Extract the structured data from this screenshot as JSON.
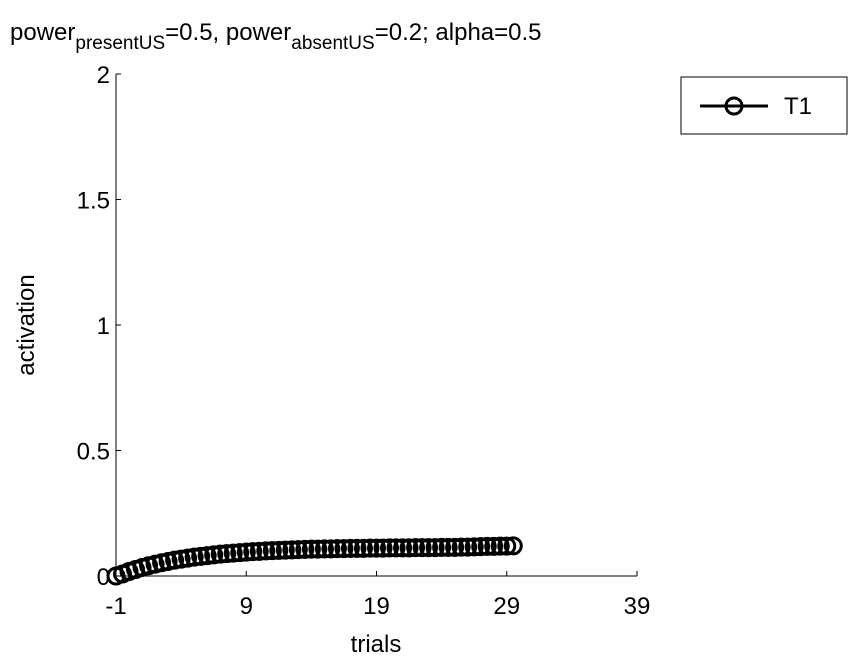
{
  "chart_data": {
    "type": "scatter",
    "title": {
      "p1": "power",
      "p1_sub": "presentUS",
      "p2": "=0.5, power",
      "p2_sub": "absentUS",
      "p3": "=0.2; alpha=0.5"
    },
    "xlabel": "trials",
    "ylabel": "activation",
    "xlim": [
      -1,
      39
    ],
    "ylim": [
      0,
      2
    ],
    "xticks": [
      -1,
      9,
      19,
      29,
      39
    ],
    "yticks": [
      0,
      0.5,
      1,
      1.5,
      2
    ],
    "xtick_labels": [
      "-1",
      "9",
      "19",
      "29",
      "39"
    ],
    "ytick_labels": [
      "0",
      "0.5",
      "1",
      "1.5",
      "2"
    ],
    "grid": false,
    "legend_position": "top-right",
    "series": [
      {
        "name": "T1",
        "color": "#000000",
        "marker": "open-circle",
        "x": [
          -1,
          -0.5,
          0,
          0.5,
          1,
          1.5,
          2,
          2.5,
          3,
          3.5,
          4,
          4.5,
          5,
          5.5,
          6,
          6.5,
          7,
          7.5,
          8,
          8.5,
          9,
          9.5,
          10,
          10.5,
          11,
          11.5,
          12,
          12.5,
          13,
          13.5,
          14,
          14.5,
          15,
          15.5,
          16,
          16.5,
          17,
          17.5,
          18,
          18.5,
          19,
          19.5,
          20,
          20.5,
          21,
          21.5,
          22,
          22.5,
          23,
          23.5,
          24,
          24.5,
          25,
          25.5,
          26,
          26.5,
          27,
          27.5,
          28,
          28.5,
          29,
          29.5
        ],
        "y": [
          0,
          0.008,
          0.018,
          0.026,
          0.034,
          0.041,
          0.047,
          0.053,
          0.058,
          0.063,
          0.067,
          0.071,
          0.075,
          0.078,
          0.081,
          0.084,
          0.087,
          0.089,
          0.091,
          0.093,
          0.095,
          0.097,
          0.098,
          0.1,
          0.101,
          0.102,
          0.103,
          0.104,
          0.105,
          0.106,
          0.107,
          0.107,
          0.108,
          0.108,
          0.109,
          0.109,
          0.11,
          0.11,
          0.11,
          0.111,
          0.111,
          0.111,
          0.112,
          0.112,
          0.112,
          0.112,
          0.113,
          0.113,
          0.113,
          0.113,
          0.114,
          0.114,
          0.114,
          0.115,
          0.115,
          0.116,
          0.117,
          0.118,
          0.118,
          0.119,
          0.119,
          0.12
        ]
      }
    ]
  }
}
